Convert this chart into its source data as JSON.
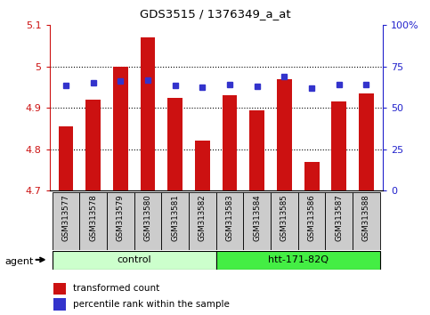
{
  "title": "GDS3515 / 1376349_a_at",
  "samples": [
    "GSM313577",
    "GSM313578",
    "GSM313579",
    "GSM313580",
    "GSM313581",
    "GSM313582",
    "GSM313583",
    "GSM313584",
    "GSM313585",
    "GSM313586",
    "GSM313587",
    "GSM313588"
  ],
  "bar_values": [
    4.855,
    4.92,
    5.0,
    5.07,
    4.925,
    4.82,
    4.93,
    4.895,
    4.97,
    4.77,
    4.915,
    4.935
  ],
  "percentile_values": [
    4.955,
    4.96,
    4.965,
    4.968,
    4.955,
    4.95,
    4.956,
    4.952,
    4.975,
    4.948,
    4.957,
    4.957
  ],
  "bar_bottom": 4.7,
  "ylim": [
    4.7,
    5.1
  ],
  "yticks_left": [
    4.7,
    4.8,
    4.9,
    5.0,
    5.1
  ],
  "ytick_labels_right": [
    "0",
    "25",
    "50",
    "75",
    "100%"
  ],
  "bar_color": "#cc1111",
  "dot_color": "#3333cc",
  "groups": [
    {
      "label": "control",
      "start": 0,
      "end": 6,
      "color": "#ccffcc"
    },
    {
      "label": "htt-171-82Q",
      "start": 6,
      "end": 12,
      "color": "#44ee44"
    }
  ],
  "agent_label": "agent",
  "legend_bar_label": "transformed count",
  "legend_dot_label": "percentile rank within the sample",
  "left_axis_color": "#cc1111",
  "right_axis_color": "#2222cc",
  "tick_label_bg": "#cccccc",
  "background_color": "#ffffff"
}
